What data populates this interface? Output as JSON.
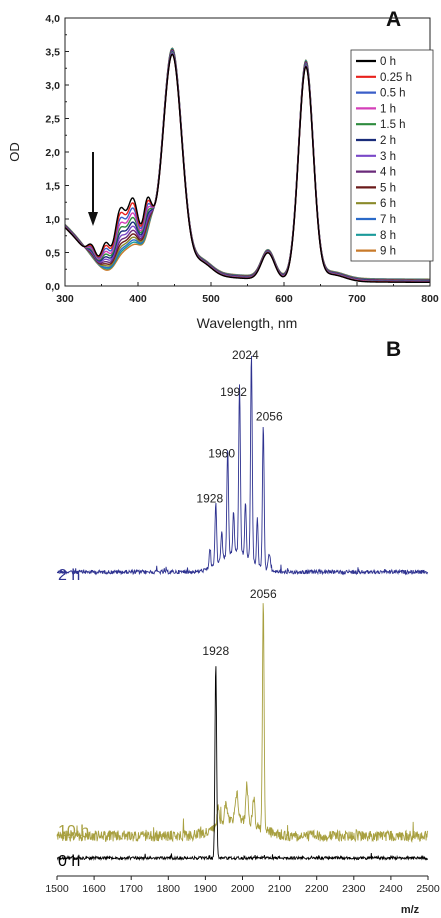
{
  "panel_labels": {
    "a": "A",
    "b": "B"
  },
  "chart_data": [
    {
      "id": "A",
      "type": "line",
      "xlabel": "Wavelength, nm",
      "ylabel": "OD",
      "xlim": [
        300,
        800
      ],
      "ylim": [
        0,
        4
      ],
      "xticks": [
        "300",
        "400",
        "500",
        "600",
        "700",
        "800"
      ],
      "yticks": [
        "0,0",
        "0,5",
        "1,0",
        "1,5",
        "2,0",
        "2,5",
        "3,0",
        "3,5",
        "4,0"
      ],
      "grid": false,
      "legend_position": "right",
      "annotation": "arrow-down",
      "series": [
        {
          "name": "0 h",
          "color": "#000000",
          "soret_peak": 3.58,
          "q_band": 3.28,
          "band_375": 1.72
        },
        {
          "name": "0.25 h",
          "color": "#e8211c",
          "soret_peak": 3.58,
          "q_band": 3.28,
          "band_375": 1.6
        },
        {
          "name": "0.5 h",
          "color": "#3a5ec8",
          "soret_peak": 3.59,
          "q_band": 3.29,
          "band_375": 1.48
        },
        {
          "name": "1 h",
          "color": "#d43fb8",
          "soret_peak": 3.59,
          "q_band": 3.29,
          "band_375": 1.36
        },
        {
          "name": "1.5 h",
          "color": "#2e8b3e",
          "soret_peak": 3.6,
          "q_band": 3.3,
          "band_375": 1.25
        },
        {
          "name": "2 h",
          "color": "#1a2c7a",
          "soret_peak": 3.6,
          "q_band": 3.3,
          "band_375": 1.14
        },
        {
          "name": "3 h",
          "color": "#7a48c8",
          "soret_peak": 3.61,
          "q_band": 3.31,
          "band_375": 1.04
        },
        {
          "name": "4 h",
          "color": "#6a2a7a",
          "soret_peak": 3.61,
          "q_band": 3.31,
          "band_375": 0.94
        },
        {
          "name": "5 h",
          "color": "#6a1a1a",
          "soret_peak": 3.62,
          "q_band": 3.32,
          "band_375": 0.85
        },
        {
          "name": "6 h",
          "color": "#8a8a2a",
          "soret_peak": 3.62,
          "q_band": 3.32,
          "band_375": 0.77
        },
        {
          "name": "7 h",
          "color": "#2a6ac8",
          "soret_peak": 3.62,
          "q_band": 3.32,
          "band_375": 0.7
        },
        {
          "name": "8 h",
          "color": "#1a9a9a",
          "soret_peak": 3.63,
          "q_band": 3.33,
          "band_375": 0.64
        },
        {
          "name": "9 h",
          "color": "#c87a2a",
          "soret_peak": 3.63,
          "q_band": 3.33,
          "band_375": 0.58
        }
      ]
    },
    {
      "id": "B",
      "type": "line",
      "xlabel": "m/z",
      "ylabel": "",
      "xlim": [
        1500,
        2500
      ],
      "xticks": [
        "1500",
        "1600",
        "1700",
        "1800",
        "1900",
        "2000",
        "2100",
        "2200",
        "2300",
        "2400",
        "2500"
      ],
      "grid": false,
      "series": [
        {
          "name": "2 h",
          "color": "#2e3290",
          "peaks": [
            {
              "mz": 1928,
              "label": "1928",
              "height": 0.3
            },
            {
              "mz": 1960,
              "label": "1960",
              "height": 0.52
            },
            {
              "mz": 1992,
              "label": "1992",
              "height": 0.82
            },
            {
              "mz": 2024,
              "label": "2024",
              "height": 1.0
            },
            {
              "mz": 2056,
              "label": "2056",
              "height": 0.7
            }
          ]
        },
        {
          "name": "10 h",
          "color": "#a8a040",
          "peaks": [
            {
              "mz": 2056,
              "label": "2056",
              "height": 1.0
            }
          ]
        },
        {
          "name": "0 h",
          "color": "#000000",
          "peaks": [
            {
              "mz": 1928,
              "label": "1928",
              "height": 1.0
            }
          ]
        }
      ]
    }
  ]
}
